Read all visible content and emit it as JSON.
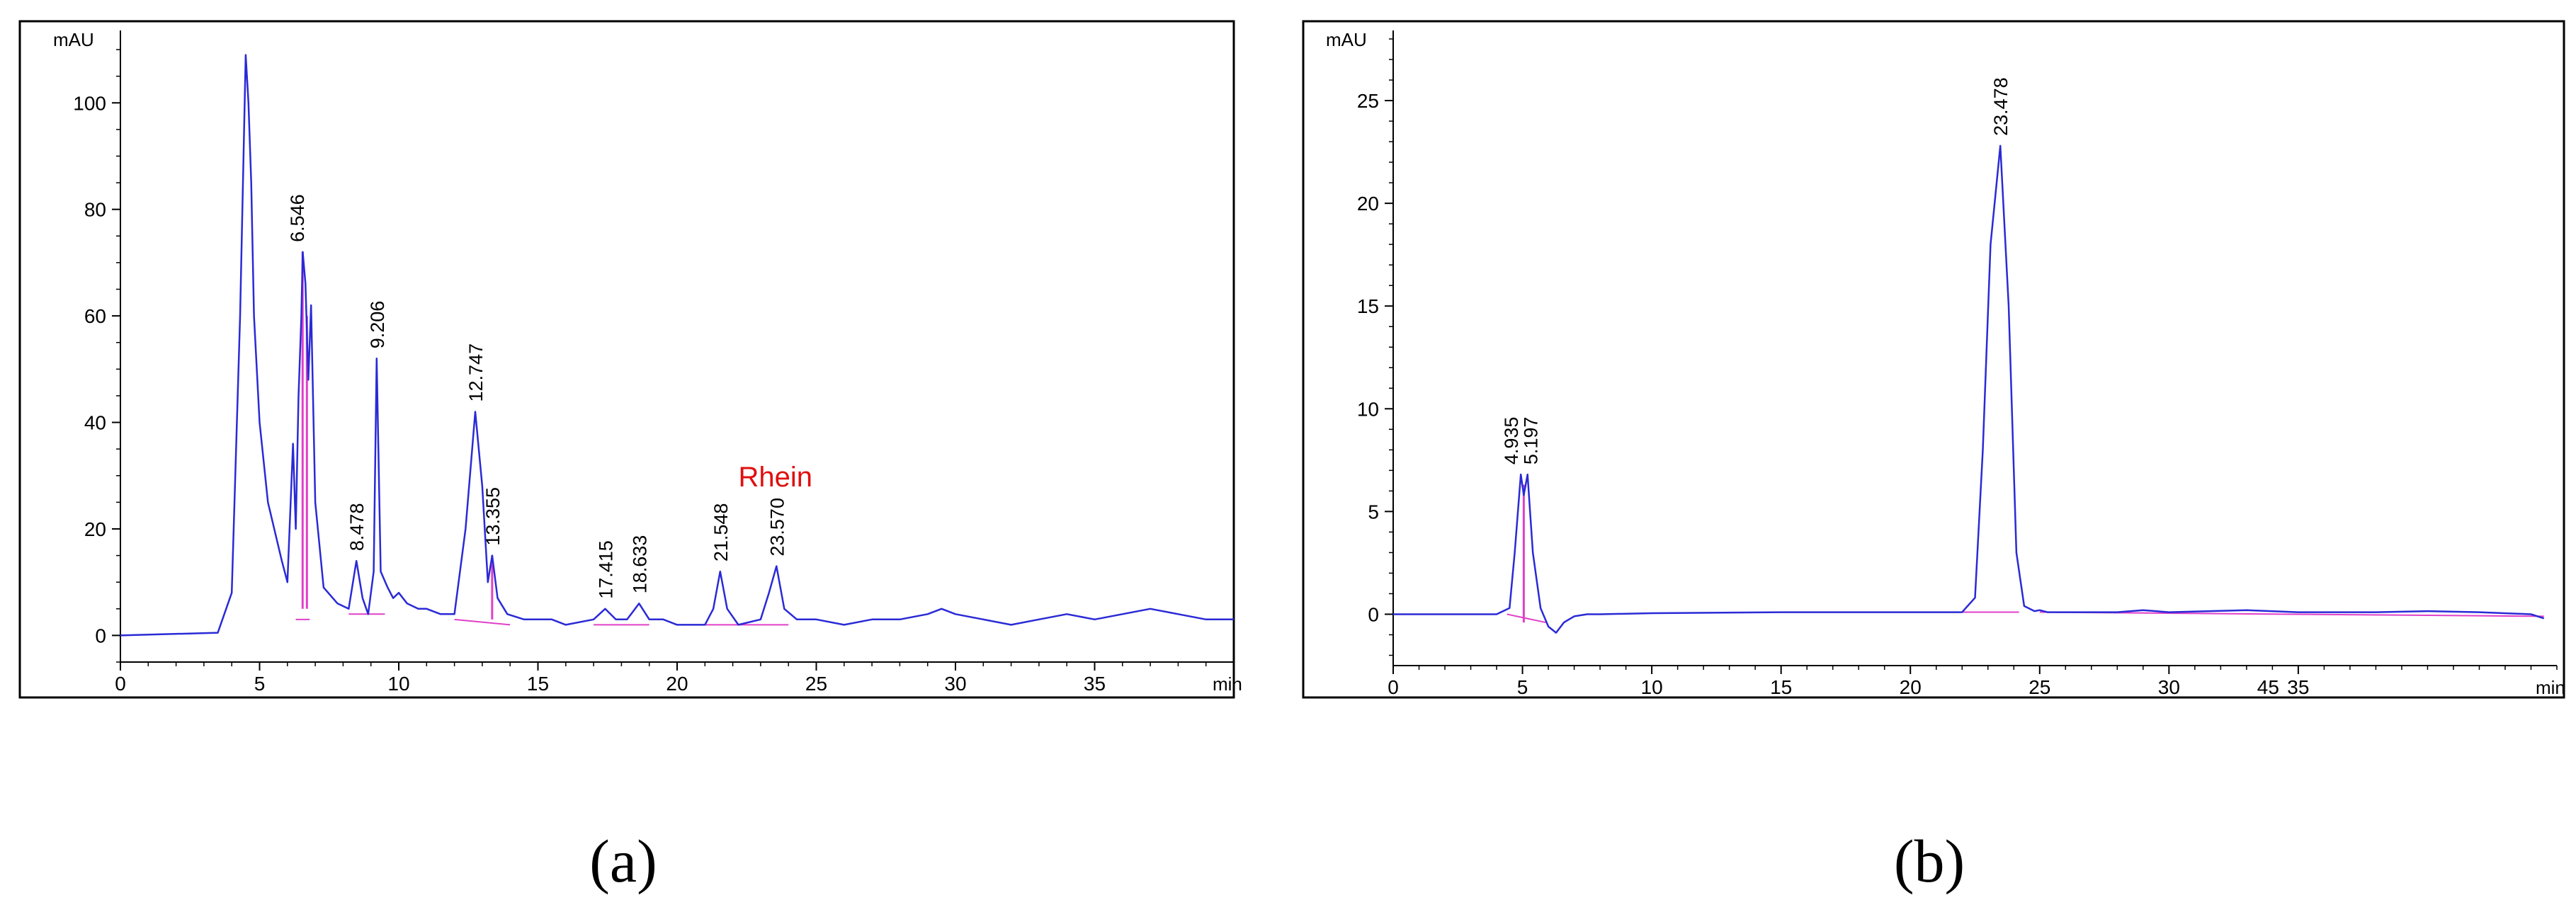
{
  "figure": {
    "captions": [
      "(a)",
      "(b)"
    ]
  },
  "colors": {
    "trace": "#2a2ad6",
    "baseline": "#e040c8",
    "annotation": "#e01010",
    "frame": "#000000"
  },
  "chart_data": [
    {
      "type": "line",
      "panel": "(a)",
      "ylabel": "mAU",
      "xlabel": "min",
      "xlim": [
        0,
        40
      ],
      "ylim": [
        -5,
        112
      ],
      "xticks": [
        0,
        5,
        10,
        15,
        20,
        25,
        30,
        35
      ],
      "yticks": [
        0,
        20,
        40,
        60,
        80,
        100
      ],
      "annotation": "Rhein",
      "peak_labels": [
        {
          "label": "6.546",
          "x": 6.546,
          "y": 72
        },
        {
          "label": "8.478",
          "x": 8.478,
          "y": 14
        },
        {
          "label": "9.206",
          "x": 9.206,
          "y": 52
        },
        {
          "label": "12.747",
          "x": 12.747,
          "y": 42
        },
        {
          "label": "13.355",
          "x": 13.355,
          "y": 15
        },
        {
          "label": "17.415",
          "x": 17.415,
          "y": 5
        },
        {
          "label": "18.633",
          "x": 18.633,
          "y": 6
        },
        {
          "label": "21.548",
          "x": 21.548,
          "y": 12
        },
        {
          "label": "23.570",
          "x": 23.57,
          "y": 13
        }
      ],
      "series": [
        {
          "x": [
            0,
            3.5,
            4.0,
            4.3,
            4.5,
            4.6,
            4.7,
            4.8,
            5.0,
            5.3,
            5.8,
            6.0,
            6.2,
            6.3,
            6.4,
            6.5,
            6.55,
            6.65,
            6.75,
            6.85,
            7.0,
            7.3,
            7.8,
            8.2,
            8.478,
            8.7,
            8.9,
            9.1,
            9.206,
            9.35,
            9.6,
            9.8,
            10.0,
            10.3,
            10.7,
            11.0,
            11.5,
            12.0,
            12.4,
            12.747,
            13.0,
            13.2,
            13.355,
            13.55,
            13.9,
            14.5,
            15.0,
            15.5,
            16.0,
            17.0,
            17.415,
            17.8,
            18.2,
            18.633,
            19.0,
            19.5,
            20.0,
            21.0,
            21.3,
            21.548,
            21.8,
            22.2,
            23.0,
            23.3,
            23.57,
            23.85,
            24.3,
            25.0,
            26.0,
            27.0,
            28.0,
            29.0,
            29.5,
            30.0,
            31.0,
            32.0,
            33.0,
            34.0,
            35.0,
            36.0,
            37.0,
            38.0,
            39.0,
            40.0
          ],
          "values": [
            0,
            0.5,
            8,
            60,
            109,
            100,
            85,
            60,
            40,
            25,
            14,
            10,
            36,
            20,
            45,
            60,
            72,
            66,
            48,
            62,
            25,
            9,
            6,
            5,
            14,
            7,
            4,
            12,
            52,
            12,
            9,
            7,
            8,
            6,
            5,
            5,
            4,
            4,
            20,
            42,
            28,
            10,
            15,
            7,
            4,
            3,
            3,
            3,
            2,
            3,
            5,
            3,
            3,
            6,
            3,
            3,
            2,
            2,
            5,
            12,
            5,
            2,
            3,
            8,
            13,
            5,
            3,
            3,
            2,
            3,
            3,
            4,
            5,
            4,
            3,
            2,
            3,
            4,
            3,
            4,
            5,
            4,
            3,
            3
          ]
        }
      ]
    },
    {
      "type": "line",
      "panel": "(b)",
      "ylabel": "mAU",
      "xlabel": "min",
      "xlim": [
        0,
        45
      ],
      "ylim": [
        -2.5,
        28
      ],
      "xticks": [
        0,
        5,
        10,
        15,
        20,
        25,
        30,
        35
      ],
      "xtick_overlap_label": "45",
      "yticks": [
        0,
        5,
        10,
        15,
        20,
        25
      ],
      "peak_labels": [
        {
          "label": "4.935",
          "x": 4.935,
          "y": 6.8
        },
        {
          "label": "5.197",
          "x": 5.197,
          "y": 6.8
        },
        {
          "label": "23.478",
          "x": 23.478,
          "y": 22.8
        }
      ],
      "series": [
        {
          "x": [
            0,
            4.0,
            4.5,
            4.7,
            4.935,
            5.05,
            5.197,
            5.4,
            5.7,
            6.0,
            6.3,
            6.6,
            7.0,
            7.5,
            8.0,
            10.0,
            15.0,
            20.0,
            22.0,
            22.5,
            22.8,
            23.1,
            23.478,
            23.8,
            24.1,
            24.4,
            24.8,
            25.0,
            25.3,
            26.0,
            28.0,
            29.0,
            30.0,
            33.0,
            35.0,
            38.0,
            40.0,
            42.0,
            44.0,
            44.5
          ],
          "values": [
            0,
            0,
            0.3,
            3.0,
            6.8,
            5.8,
            6.8,
            3.0,
            0.3,
            -0.6,
            -0.9,
            -0.4,
            -0.1,
            0,
            0,
            0.05,
            0.1,
            0.1,
            0.1,
            0.8,
            8,
            18,
            22.8,
            15,
            3,
            0.4,
            0.15,
            0.2,
            0.1,
            0.1,
            0.1,
            0.2,
            0.1,
            0.2,
            0.1,
            0.1,
            0.15,
            0.1,
            0,
            -0.2
          ]
        }
      ]
    }
  ]
}
